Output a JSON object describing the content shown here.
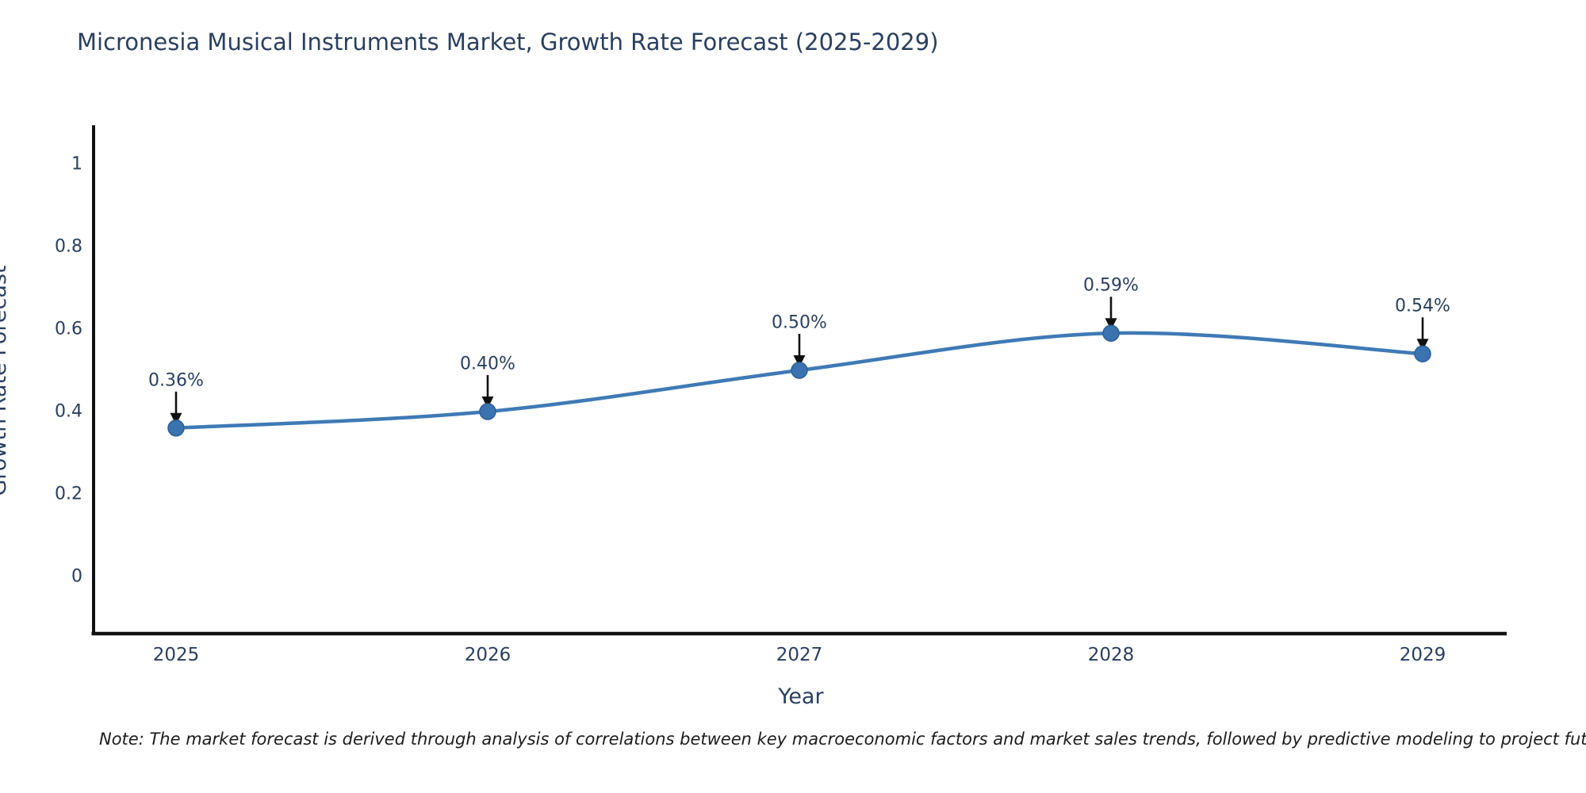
{
  "title": "Micronesia Musical Instruments Market, Growth Rate Forecast (2025-2029)",
  "note": "Note: The market forecast is derived through analysis of correlations between key macroeconomic factors and market sales trends, followed by predictive modeling to project future sales",
  "chart_data": {
    "type": "line",
    "title": "Micronesia Musical Instruments Market, Growth Rate Forecast (2025-2029)",
    "xlabel": "Year",
    "ylabel": "Growth Rate Forecast",
    "x": [
      "2025",
      "2026",
      "2027",
      "2028",
      "2029"
    ],
    "series": [
      {
        "name": "Growth Rate Forecast",
        "values": [
          0.36,
          0.4,
          0.5,
          0.59,
          0.54
        ],
        "point_labels": [
          "0.36%",
          "0.40%",
          "0.50%",
          "0.59%",
          "0.54%"
        ]
      }
    ],
    "y_ticks": [
      0,
      0.2,
      0.4,
      0.6,
      0.8,
      1
    ],
    "ylim": [
      -0.14,
      1.09
    ],
    "grid": false,
    "legend": "none",
    "line_shape": "spline",
    "annotations": "black arrows pointing down from each percentage label to its data point",
    "colors": {
      "line": "#3f7ab5",
      "marker_fill": "#3a73b0",
      "marker_edge": "#2f5f94",
      "axis": "#111111",
      "arrow": "#111111",
      "text": "#2a3f5f",
      "note_text": "#1c1c1c",
      "background": "#ffffff"
    }
  }
}
